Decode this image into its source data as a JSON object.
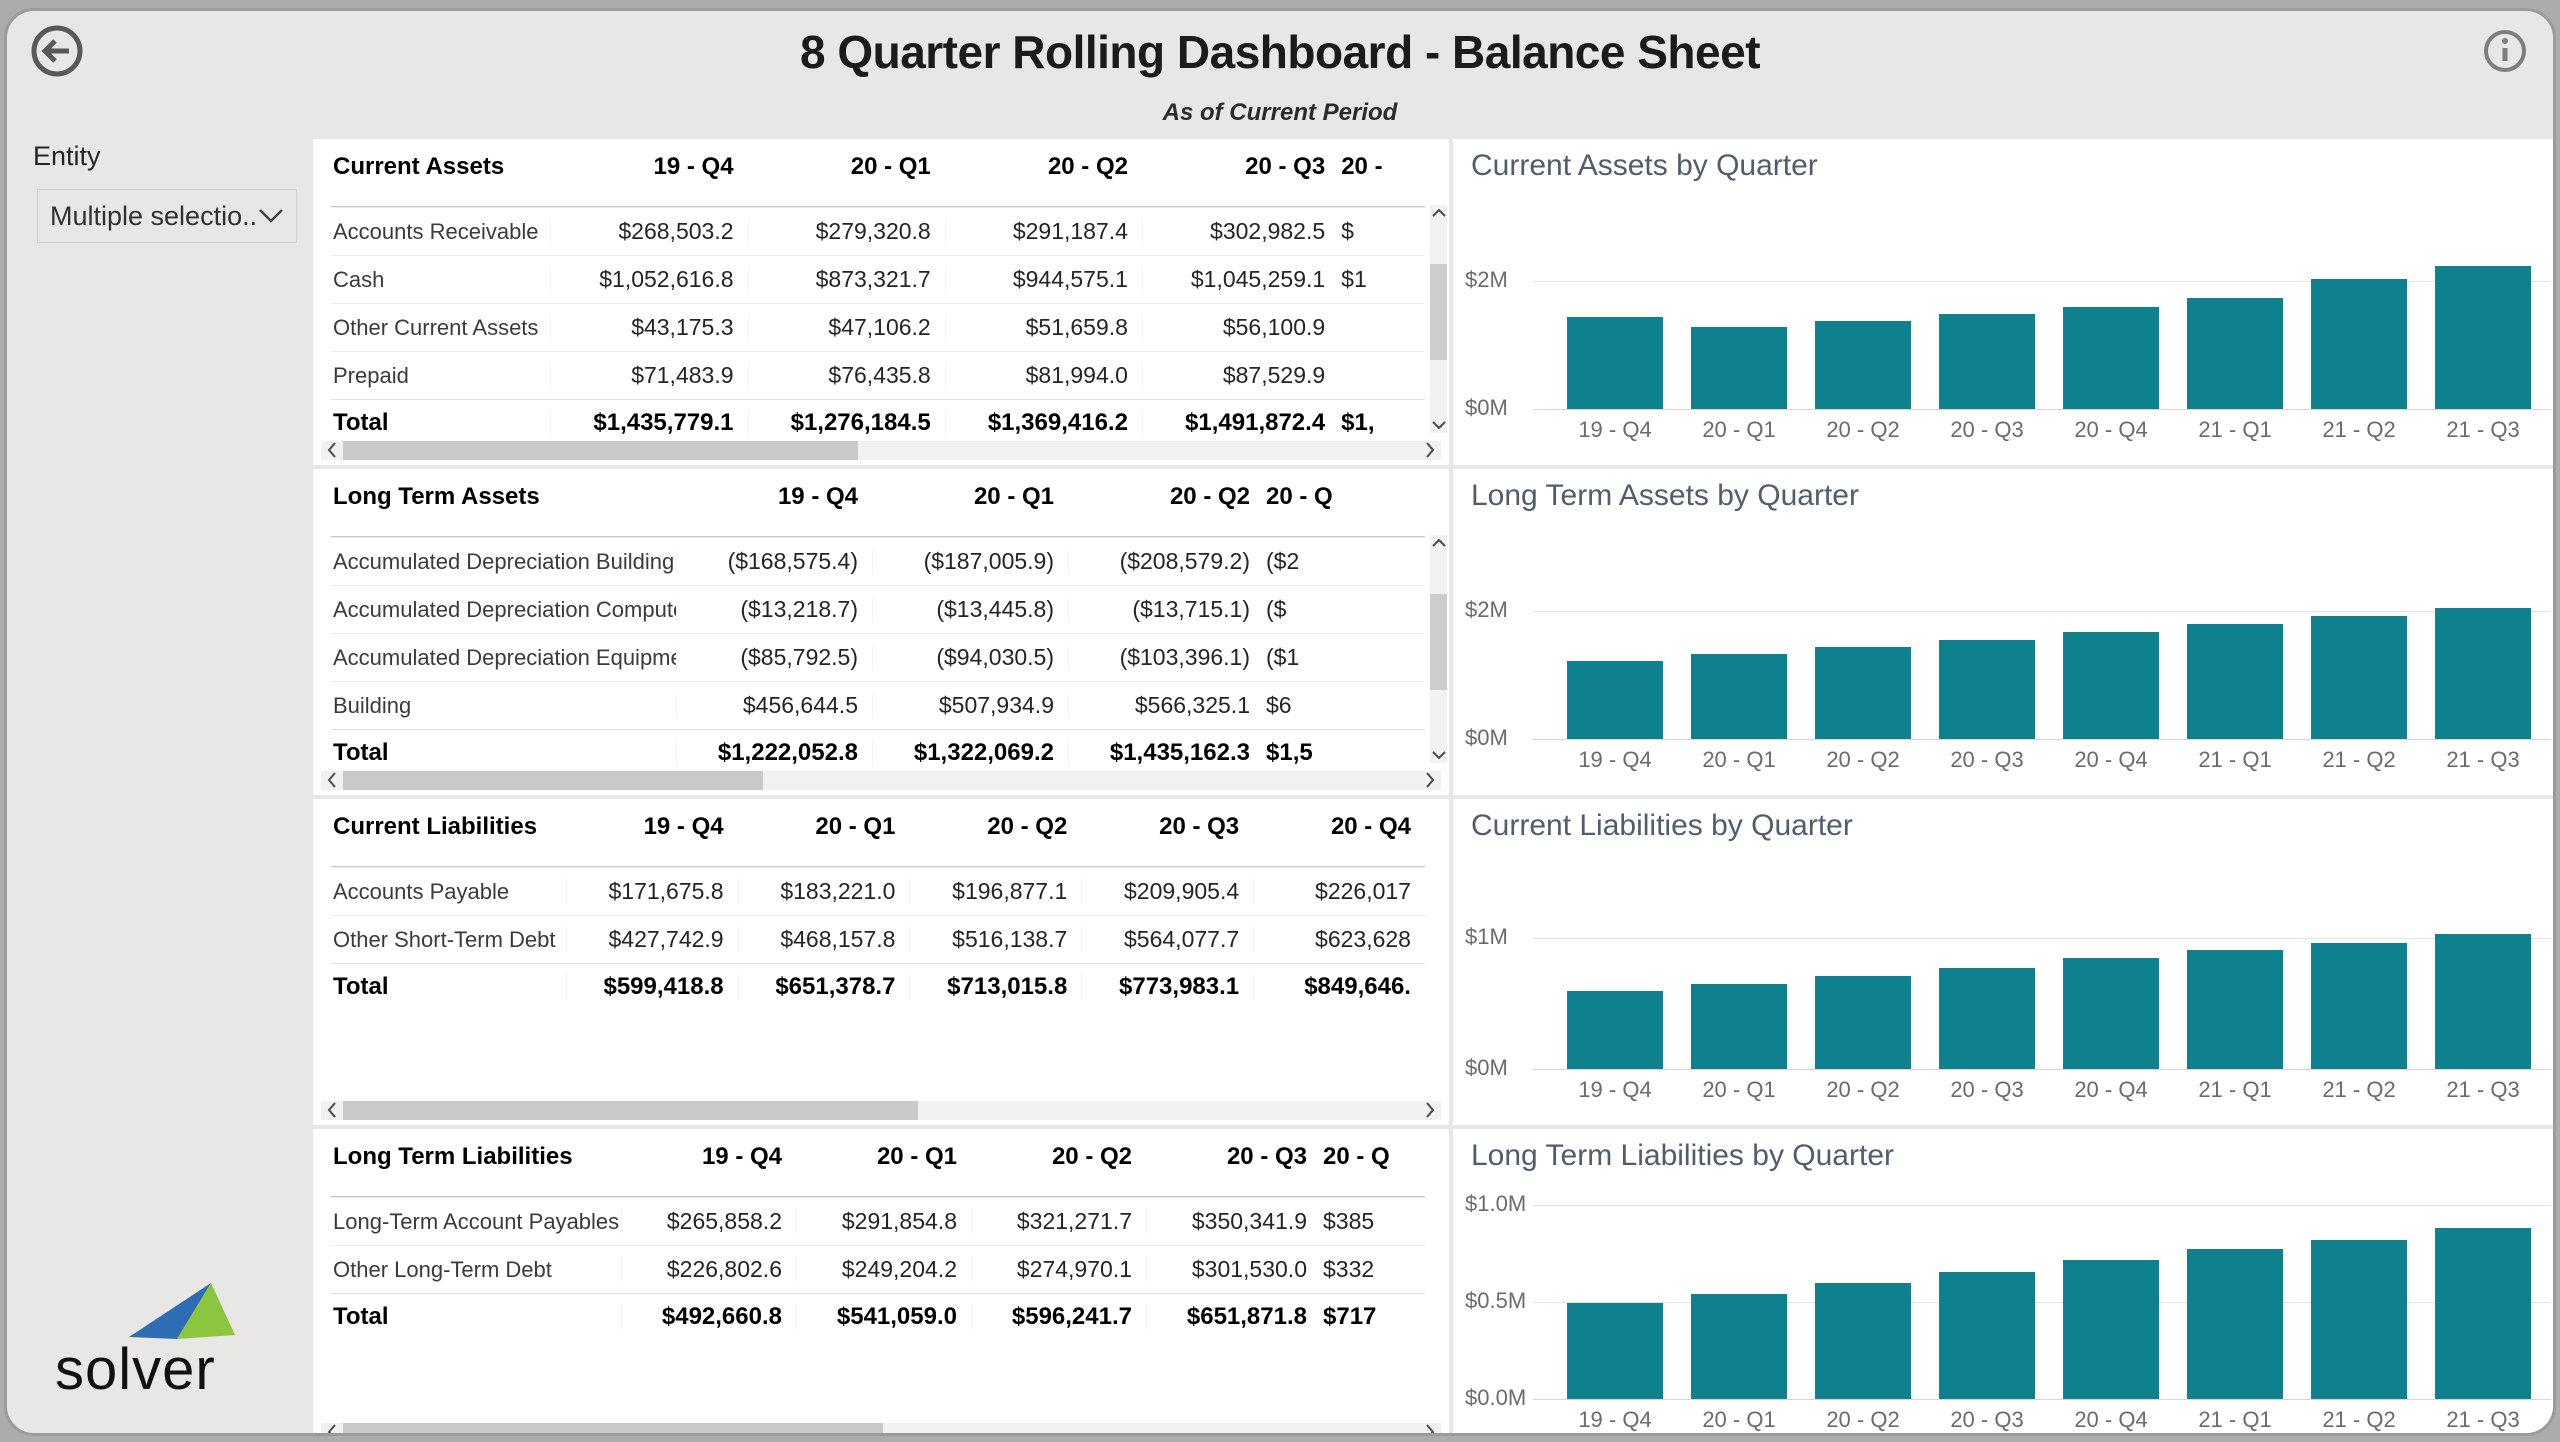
{
  "header": {
    "back_icon": "arrow-left-circle",
    "info_icon": "info-circle",
    "title": "8 Quarter Rolling Dashboard - Balance Sheet",
    "subtitle": "As of Current Period"
  },
  "sidebar": {
    "entity_label": "Entity",
    "entity_dropdown_value": "Multiple selectio...",
    "dropdown_icon": "chevron-down",
    "logo_text": "solver"
  },
  "colors": {
    "bar_teal": "#0F818E",
    "chart_title": "#4F5D6D",
    "logo_blue": "#2E6DB4",
    "logo_green": "#8CC63E"
  },
  "tables": [
    {
      "title": "Current Assets",
      "sort_indicator": "asc",
      "columns": [
        "19 - Q4",
        "20 - Q1",
        "20 - Q2",
        "20 - Q3"
      ],
      "clipped_column": {
        "header": "20 -",
        "values": [
          "$",
          "$1",
          "",
          "",
          "$1,"
        ]
      },
      "rows": [
        {
          "label": "Accounts Receivable",
          "values": [
            "$268,503.2",
            "$279,320.8",
            "$291,187.4",
            "$302,982.5"
          ]
        },
        {
          "label": "Cash",
          "values": [
            "$1,052,616.8",
            "$873,321.7",
            "$944,575.1",
            "$1,045,259.1"
          ]
        },
        {
          "label": "Other Current Assets",
          "values": [
            "$43,175.3",
            "$47,106.2",
            "$51,659.8",
            "$56,100.9"
          ]
        },
        {
          "label": "Prepaid",
          "values": [
            "$71,483.9",
            "$76,435.8",
            "$81,994.0",
            "$87,529.9"
          ]
        }
      ],
      "total": {
        "label": "Total",
        "values": [
          "$1,435,779.1",
          "$1,276,184.5",
          "$1,369,416.2",
          "$1,491,872.4"
        ]
      },
      "has_vertical_scrollbar": true
    },
    {
      "title": "Long Term Assets",
      "sort_indicator": null,
      "columns": [
        "19 - Q4",
        "20 - Q1",
        "20 - Q2"
      ],
      "clipped_column": {
        "header": "20 - Q",
        "values": [
          "($2",
          "($",
          "($1",
          "$6",
          "$1,5"
        ]
      },
      "rows": [
        {
          "label": "Accumulated Depreciation Building",
          "values": [
            "($168,575.4)",
            "($187,005.9)",
            "($208,579.2)"
          ]
        },
        {
          "label": "Accumulated Depreciation Computer",
          "values": [
            "($13,218.7)",
            "($13,445.8)",
            "($13,715.1)"
          ]
        },
        {
          "label": "Accumulated Depreciation Equipment",
          "values": [
            "($85,792.5)",
            "($94,030.5)",
            "($103,396.1)"
          ]
        },
        {
          "label": "Building",
          "values": [
            "$456,644.5",
            "$507,934.9",
            "$566,325.1"
          ]
        }
      ],
      "total": {
        "label": "Total",
        "values": [
          "$1,222,052.8",
          "$1,322,069.2",
          "$1,435,162.3"
        ]
      },
      "has_vertical_scrollbar": true
    },
    {
      "title": "Current Liabilities",
      "sort_indicator": null,
      "columns": [
        "19 - Q4",
        "20 - Q1",
        "20 - Q2",
        "20 - Q3",
        "20 - Q4"
      ],
      "clipped_column": null,
      "rows": [
        {
          "label": "Accounts Payable",
          "values": [
            "$171,675.8",
            "$183,221.0",
            "$196,877.1",
            "$209,905.4",
            "$226,017"
          ]
        },
        {
          "label": "Other Short-Term Debt",
          "values": [
            "$427,742.9",
            "$468,157.8",
            "$516,138.7",
            "$564,077.7",
            "$623,628"
          ]
        }
      ],
      "total": {
        "label": "Total",
        "values": [
          "$599,418.8",
          "$651,378.7",
          "$713,015.8",
          "$773,983.1",
          "$849,646."
        ]
      },
      "has_vertical_scrollbar": false
    },
    {
      "title": "Long Term Liabilities",
      "sort_indicator": null,
      "columns": [
        "19 - Q4",
        "20 - Q1",
        "20 - Q2",
        "20 - Q3"
      ],
      "clipped_column": {
        "header": "20 - Q",
        "values": [
          "$385",
          "$332",
          "$717"
        ]
      },
      "rows": [
        {
          "label": "Long-Term Account Payables",
          "values": [
            "$265,858.2",
            "$291,854.8",
            "$321,271.7",
            "$350,341.9"
          ]
        },
        {
          "label": "Other Long-Term Debt",
          "values": [
            "$226,802.6",
            "$249,204.2",
            "$274,970.1",
            "$301,530.0"
          ]
        }
      ],
      "total": {
        "label": "Total",
        "values": [
          "$492,660.8",
          "$541,059.0",
          "$596,241.7",
          "$651,871.8"
        ]
      },
      "has_vertical_scrollbar": false
    }
  ],
  "chart_data": [
    {
      "type": "bar",
      "title": "Current Assets by Quarter",
      "categories": [
        "19 - Q4",
        "20 - Q1",
        "20 - Q2",
        "20 - Q3",
        "20 - Q4",
        "21 - Q1",
        "21 - Q2",
        "21 - Q3"
      ],
      "values_millions": [
        1.436,
        1.276,
        1.369,
        1.492,
        1.59,
        1.74,
        2.03,
        2.24
      ],
      "yticks": [
        {
          "label": "$2M",
          "value": 2
        },
        {
          "label": "$0M",
          "value": 0
        }
      ],
      "ylim": [
        0,
        2.61
      ],
      "grid": true,
      "bar_color": "#0F818E"
    },
    {
      "type": "bar",
      "title": "Long Term Assets by Quarter",
      "categories": [
        "19 - Q4",
        "20 - Q1",
        "20 - Q2",
        "20 - Q3",
        "20 - Q4",
        "21 - Q1",
        "21 - Q2",
        "21 - Q3"
      ],
      "values_millions": [
        1.222,
        1.322,
        1.435,
        1.55,
        1.68,
        1.8,
        1.93,
        2.05
      ],
      "yticks": [
        {
          "label": "$2M",
          "value": 2
        },
        {
          "label": "$0M",
          "value": 0
        }
      ],
      "ylim": [
        0,
        2.61
      ],
      "grid": true,
      "bar_color": "#0F818E"
    },
    {
      "type": "bar",
      "title": "Current Liabilities by Quarter",
      "categories": [
        "19 - Q4",
        "20 - Q1",
        "20 - Q2",
        "20 - Q3",
        "20 - Q4",
        "21 - Q1",
        "21 - Q2",
        "21 - Q3"
      ],
      "values_millions": [
        0.599,
        0.651,
        0.713,
        0.774,
        0.85,
        0.91,
        0.96,
        1.03
      ],
      "yticks": [
        {
          "label": "$1M",
          "value": 1
        },
        {
          "label": "$0M",
          "value": 0
        }
      ],
      "ylim": [
        0,
        1.275
      ],
      "grid": true,
      "bar_color": "#0F818E"
    },
    {
      "type": "bar",
      "title": "Long Term Liabilities by Quarter",
      "categories": [
        "19 - Q4",
        "20 - Q1",
        "20 - Q2",
        "20 - Q3",
        "20 - Q4",
        "21 - Q1",
        "21 - Q2",
        "21 - Q3"
      ],
      "values_millions": [
        0.493,
        0.541,
        0.596,
        0.652,
        0.717,
        0.77,
        0.82,
        0.88
      ],
      "yticks": [
        {
          "label": "$1.0M",
          "value": 1.0
        },
        {
          "label": "$0.5M",
          "value": 0.5
        },
        {
          "label": "$0.0M",
          "value": 0.0
        }
      ],
      "ylim": [
        0,
        1.07
      ],
      "grid": true,
      "bar_color": "#0F818E"
    }
  ]
}
